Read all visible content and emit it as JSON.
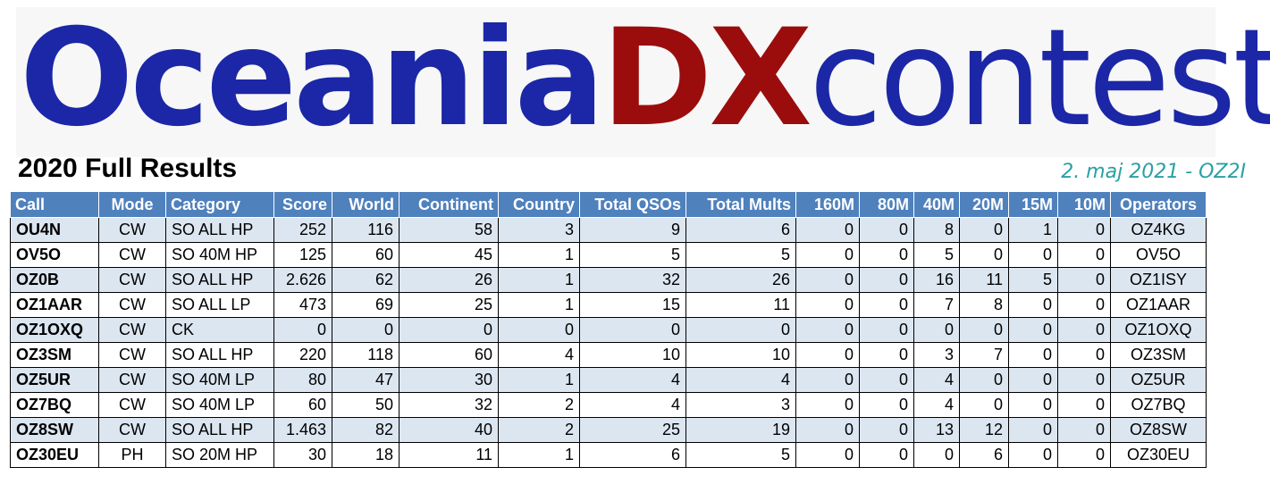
{
  "logo": {
    "part1": "Oceania",
    "part2": "DX",
    "part3": "contest"
  },
  "title": "2020 Full Results",
  "note": "2. maj 2021 - OZ2I",
  "columns": [
    "Call",
    "Mode",
    "Category",
    "Score",
    "World",
    "Continent",
    "Country",
    "Total QSOs",
    "Total Mults",
    "160M",
    "80M",
    "40M",
    "20M",
    "15M",
    "10M",
    "Operators"
  ],
  "rows": [
    [
      "OU4N",
      "CW",
      "SO ALL HP",
      "252",
      "116",
      "58",
      "3",
      "9",
      "6",
      "0",
      "0",
      "8",
      "0",
      "1",
      "0",
      "OZ4KG"
    ],
    [
      "OV5O",
      "CW",
      "SO 40M HP",
      "125",
      "60",
      "45",
      "1",
      "5",
      "5",
      "0",
      "0",
      "5",
      "0",
      "0",
      "0",
      "OV5O"
    ],
    [
      "OZ0B",
      "CW",
      "SO ALL HP",
      "2.626",
      "62",
      "26",
      "1",
      "32",
      "26",
      "0",
      "0",
      "16",
      "11",
      "5",
      "0",
      "OZ1ISY"
    ],
    [
      "OZ1AAR",
      "CW",
      "SO ALL LP",
      "473",
      "69",
      "25",
      "1",
      "15",
      "11",
      "0",
      "0",
      "7",
      "8",
      "0",
      "0",
      "OZ1AAR"
    ],
    [
      "OZ1OXQ",
      "CW",
      "CK",
      "0",
      "0",
      "0",
      "0",
      "0",
      "0",
      "0",
      "0",
      "0",
      "0",
      "0",
      "0",
      "OZ1OXQ"
    ],
    [
      "OZ3SM",
      "CW",
      "SO ALL HP",
      "220",
      "118",
      "60",
      "4",
      "10",
      "10",
      "0",
      "0",
      "3",
      "7",
      "0",
      "0",
      "OZ3SM"
    ],
    [
      "OZ5UR",
      "CW",
      "SO 40M LP",
      "80",
      "47",
      "30",
      "1",
      "4",
      "4",
      "0",
      "0",
      "4",
      "0",
      "0",
      "0",
      "OZ5UR"
    ],
    [
      "OZ7BQ",
      "CW",
      "SO 40M LP",
      "60",
      "50",
      "32",
      "2",
      "4",
      "3",
      "0",
      "0",
      "4",
      "0",
      "0",
      "0",
      "OZ7BQ"
    ],
    [
      "OZ8SW",
      "CW",
      "SO ALL HP",
      "1.463",
      "82",
      "40",
      "2",
      "25",
      "19",
      "0",
      "0",
      "13",
      "12",
      "0",
      "0",
      "OZ8SW"
    ],
    [
      "OZ30EU",
      "PH",
      "SO 20M HP",
      "30",
      "18",
      "11",
      "1",
      "6",
      "5",
      "0",
      "0",
      "0",
      "6",
      "0",
      "0",
      "OZ30EU"
    ]
  ]
}
